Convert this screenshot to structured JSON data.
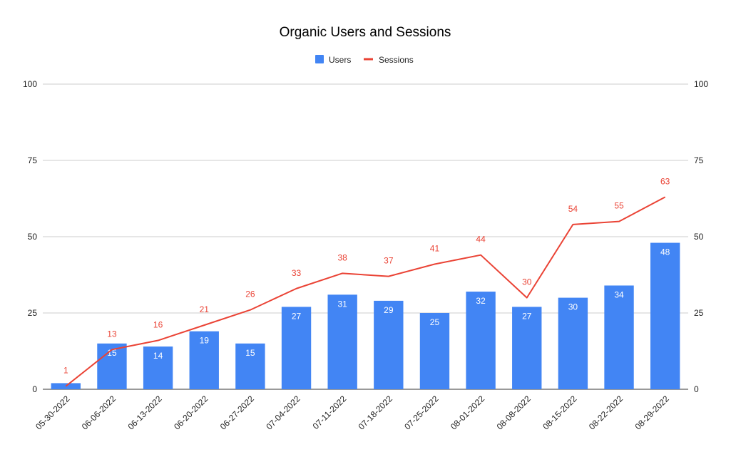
{
  "chart_data": {
    "type": "bar+line",
    "title": "Organic Users and Sessions",
    "categories": [
      "05-30-2022",
      "06-06-2022",
      "06-13-2022",
      "06-20-2022",
      "06-27-2022",
      "07-04-2022",
      "07-11-2022",
      "07-18-2022",
      "07-25-2022",
      "08-01-2022",
      "08-08-2022",
      "08-15-2022",
      "08-22-2022",
      "08-29-2022"
    ],
    "series": [
      {
        "name": "Users",
        "type": "bar",
        "color": "#4285f4",
        "values": [
          2,
          15,
          14,
          19,
          15,
          27,
          31,
          29,
          25,
          32,
          27,
          30,
          34,
          48
        ],
        "labels": [
          "",
          "15",
          "14",
          "19",
          "15",
          "27",
          "31",
          "29",
          "25",
          "32",
          "27",
          "30",
          "34",
          "48"
        ]
      },
      {
        "name": "Sessions",
        "type": "line",
        "color": "#ea4335",
        "values": [
          1,
          13,
          16,
          21,
          26,
          33,
          38,
          37,
          41,
          44,
          30,
          54,
          55,
          63
        ],
        "labels": [
          "1",
          "13",
          "16",
          "21",
          "26",
          "33",
          "38",
          "37",
          "41",
          "44",
          "30",
          "54",
          "55",
          "63"
        ]
      }
    ],
    "ylim": [
      0,
      100
    ],
    "yticks": [
      0,
      25,
      50,
      75,
      100
    ],
    "ytick_labels": [
      "0",
      "25",
      "50",
      "75",
      "100"
    ],
    "right_axis": true,
    "grid": true,
    "legend_position": "top-center",
    "xlabel": "",
    "ylabel": ""
  }
}
